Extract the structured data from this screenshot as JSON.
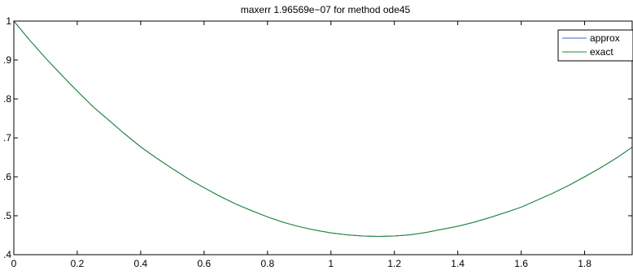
{
  "chart_data": {
    "type": "line",
    "title": "maxerr 1.96569e−07  for method ode45",
    "xlabel": "",
    "ylabel": "",
    "xlim": [
      0,
      1.95
    ],
    "ylim": [
      0.4,
      1.0
    ],
    "x_ticks": [
      0,
      0.2,
      0.4,
      0.6,
      0.8,
      1.0,
      1.2,
      1.4,
      1.6,
      1.8
    ],
    "x_tick_labels": [
      "0",
      "0.2",
      "0.4",
      "0.6",
      "0.8",
      "1",
      "1.2",
      "1.4",
      "1.6",
      "1.8"
    ],
    "y_ticks": [
      0.4,
      0.5,
      0.6,
      0.7,
      0.8,
      0.9,
      1.0
    ],
    "y_tick_labels": [
      ".4",
      ".5",
      ".6",
      ".7",
      ".8",
      ".9",
      "1"
    ],
    "grid": false,
    "legend_position": "top-right",
    "series": [
      {
        "name": "approx",
        "color": "#3a63c8",
        "x": [
          0,
          0.05,
          0.1,
          0.15,
          0.2,
          0.25,
          0.3,
          0.35,
          0.4,
          0.45,
          0.5,
          0.55,
          0.6,
          0.65,
          0.7,
          0.75,
          0.8,
          0.85,
          0.9,
          0.95,
          1.0,
          1.05,
          1.1,
          1.15,
          1.2,
          1.25,
          1.3,
          1.35,
          1.4,
          1.45,
          1.5,
          1.55,
          1.6,
          1.65,
          1.7,
          1.75,
          1.8,
          1.85,
          1.9,
          1.95
        ],
        "values": [
          1.0,
          0.951,
          0.905,
          0.862,
          0.82,
          0.78,
          0.745,
          0.71,
          0.677,
          0.648,
          0.621,
          0.595,
          0.572,
          0.55,
          0.53,
          0.513,
          0.497,
          0.483,
          0.472,
          0.463,
          0.456,
          0.451,
          0.448,
          0.447,
          0.448,
          0.451,
          0.457,
          0.465,
          0.473,
          0.483,
          0.495,
          0.508,
          0.522,
          0.54,
          0.558,
          0.578,
          0.6,
          0.623,
          0.648,
          0.676
        ]
      },
      {
        "name": "exact",
        "color": "#1e8a2e",
        "x": [
          0,
          0.05,
          0.1,
          0.15,
          0.2,
          0.25,
          0.3,
          0.35,
          0.4,
          0.45,
          0.5,
          0.55,
          0.6,
          0.65,
          0.7,
          0.75,
          0.8,
          0.85,
          0.9,
          0.95,
          1.0,
          1.05,
          1.1,
          1.15,
          1.2,
          1.25,
          1.3,
          1.35,
          1.4,
          1.45,
          1.5,
          1.55,
          1.6,
          1.65,
          1.7,
          1.75,
          1.8,
          1.85,
          1.9,
          1.95
        ],
        "values": [
          1.0,
          0.951,
          0.905,
          0.862,
          0.82,
          0.78,
          0.745,
          0.71,
          0.677,
          0.648,
          0.621,
          0.595,
          0.572,
          0.55,
          0.53,
          0.513,
          0.497,
          0.483,
          0.472,
          0.463,
          0.456,
          0.451,
          0.448,
          0.447,
          0.448,
          0.451,
          0.457,
          0.465,
          0.473,
          0.483,
          0.495,
          0.508,
          0.522,
          0.54,
          0.558,
          0.578,
          0.6,
          0.623,
          0.648,
          0.676
        ]
      }
    ]
  }
}
